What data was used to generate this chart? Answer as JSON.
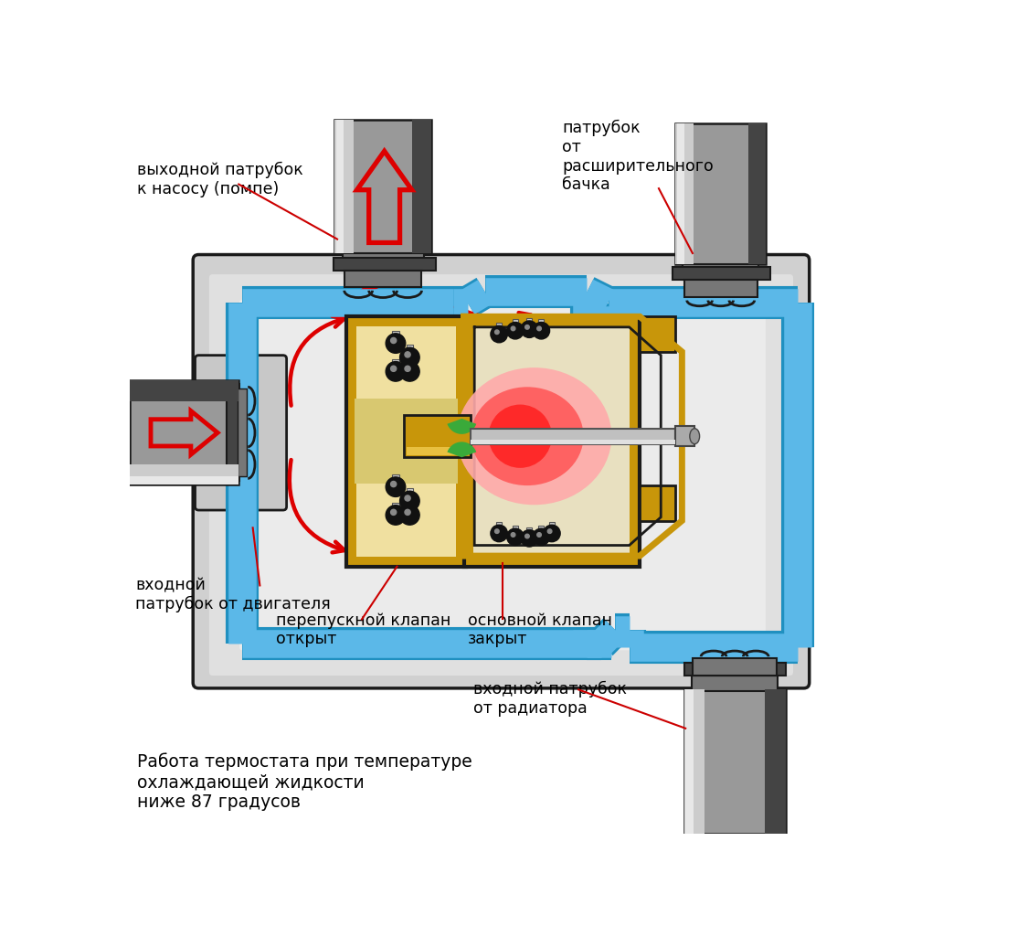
{
  "bg_color": "#ffffff",
  "colors": {
    "body_light": "#d8d8d8",
    "body_mid": "#b8b8b8",
    "body_dark": "#888888",
    "body_darker": "#555555",
    "body_edge": "#1a1a1a",
    "blue_fill": "#5bb8e8",
    "blue_dark": "#2090c0",
    "blue_edge": "#1070a0",
    "gold": "#c8960a",
    "gold_light": "#e8c050",
    "gold_inner": "#e8d890",
    "red_flow": "#dd0000",
    "red_glow_outer": "#ff8888",
    "red_glow_inner": "#ff2222",
    "green_seal": "#3aaa3a",
    "rod_fill": "#c0c0c0",
    "rod_dark": "#707070",
    "black": "#111111",
    "white": "#ffffff",
    "pipe_top_light": "#cccccc",
    "pipe_top_mid": "#999999",
    "pipe_top_dark": "#444444",
    "pipe_neck": "#777777"
  },
  "label_color": "#000000",
  "red_line": "#cc0000",
  "labels": {
    "top_left": "выходной патрубок\nк насосу (помпе)",
    "top_right": "патрубок\nот\nрасширительного\nбачка",
    "mid_left": "входной\nпатрубок от двигателя",
    "bypass": "перепускной клапан\nоткрыт",
    "main_valve": "основной клапан\nзакрыт",
    "radiator": "входной патрубок\nот радиатора",
    "desc": "Работа термостата при температуре\nохлаждающей жидкости\nниже 87 градусов"
  }
}
